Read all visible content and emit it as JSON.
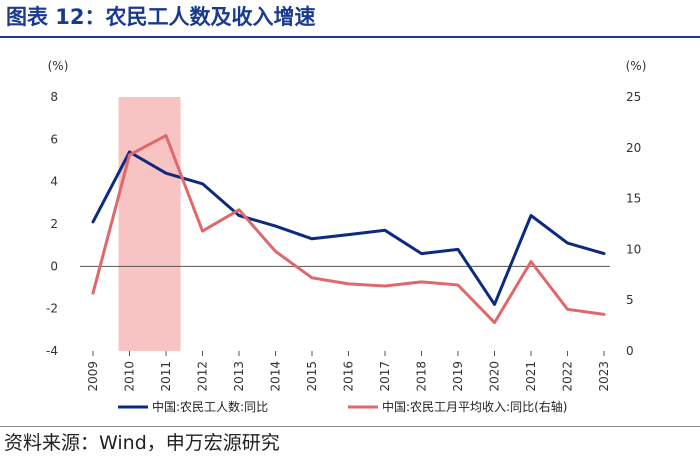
{
  "figure": {
    "title": "图表 12：农民工人数及收入增速",
    "source": "资料来源：Wind，申万宏源研究",
    "colors": {
      "title": "#1a3a8f",
      "highlight": "#f7b8b8"
    }
  },
  "chart_data": {
    "type": "line",
    "categories": [
      "2009",
      "2010",
      "2011",
      "2012",
      "2013",
      "2014",
      "2015",
      "2016",
      "2017",
      "2018",
      "2019",
      "2020",
      "2021",
      "2022",
      "2023"
    ],
    "series": [
      {
        "name": "中国:农民工人数:同比",
        "axis": "left",
        "color": "#0d2a80",
        "values": [
          2.1,
          5.4,
          4.4,
          3.9,
          2.4,
          1.9,
          1.3,
          1.5,
          1.7,
          0.6,
          0.8,
          -1.8,
          2.4,
          1.1,
          0.6
        ]
      },
      {
        "name": "中国:农民工月平均收入:同比(右轴)",
        "axis": "right",
        "color": "#e0686a",
        "values": [
          5.7,
          19.3,
          21.2,
          11.8,
          13.9,
          9.8,
          7.2,
          6.6,
          6.4,
          6.8,
          6.5,
          2.8,
          8.8,
          4.1,
          3.6
        ]
      }
    ],
    "y_left": {
      "label": "(%)",
      "ylim": [
        -4,
        8
      ],
      "ticks": [
        -4,
        -2,
        0,
        2,
        4,
        6,
        8
      ]
    },
    "y_right": {
      "label": "(%)",
      "ylim": [
        0,
        25
      ],
      "ticks": [
        0,
        5,
        10,
        15,
        20,
        25
      ]
    },
    "highlight_range": [
      "2009.7",
      "2011.4"
    ],
    "legend_position": "bottom",
    "grid": false
  }
}
